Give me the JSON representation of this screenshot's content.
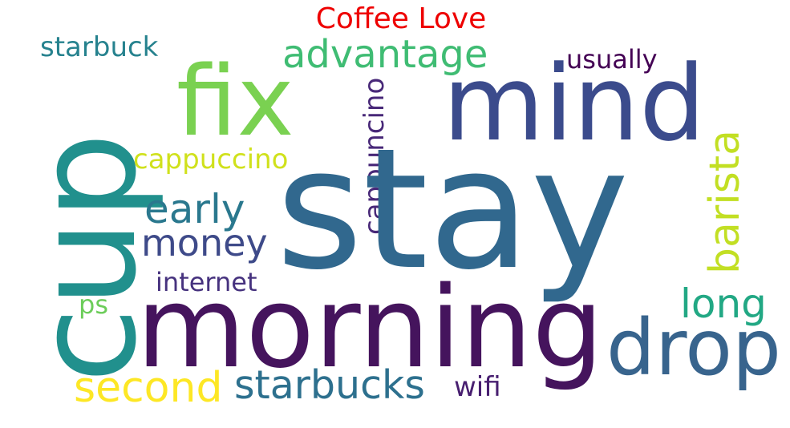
{
  "title": "Coffee Love",
  "title_color": "#ee0000",
  "words": {
    "stay": {
      "text": "stay",
      "color": "#31688e"
    },
    "morning": {
      "text": "morning",
      "color": "#45145d"
    },
    "cup": {
      "text": "cup",
      "color": "#21908d"
    },
    "mind": {
      "text": "mind",
      "color": "#3b4b8c"
    },
    "fix": {
      "text": "fix",
      "color": "#7ad151"
    },
    "drop": {
      "text": "drop",
      "color": "#38648d"
    },
    "advantage": {
      "text": "advantage",
      "color": "#3fbc73"
    },
    "starbucks": {
      "text": "starbucks",
      "color": "#2d708e"
    },
    "second": {
      "text": "second",
      "color": "#fde725"
    },
    "barista": {
      "text": "barista",
      "color": "#c2df23"
    },
    "cappuncino": {
      "text": "cappuncino",
      "color": "#482878"
    },
    "early": {
      "text": "early",
      "color": "#2a788e"
    },
    "money": {
      "text": "money",
      "color": "#3e4a89"
    },
    "long": {
      "text": "long",
      "color": "#22a884"
    },
    "internet": {
      "text": "internet",
      "color": "#46327e"
    },
    "cappuccino": {
      "text": "cappuccino",
      "color": "#d0e11c"
    },
    "starbuck": {
      "text": "starbuck",
      "color": "#26828e"
    },
    "usually": {
      "text": "usually",
      "color": "#440154"
    },
    "wifi": {
      "text": "wifi",
      "color": "#481f70"
    },
    "ps": {
      "text": "ps",
      "color": "#6ccd5a"
    }
  }
}
